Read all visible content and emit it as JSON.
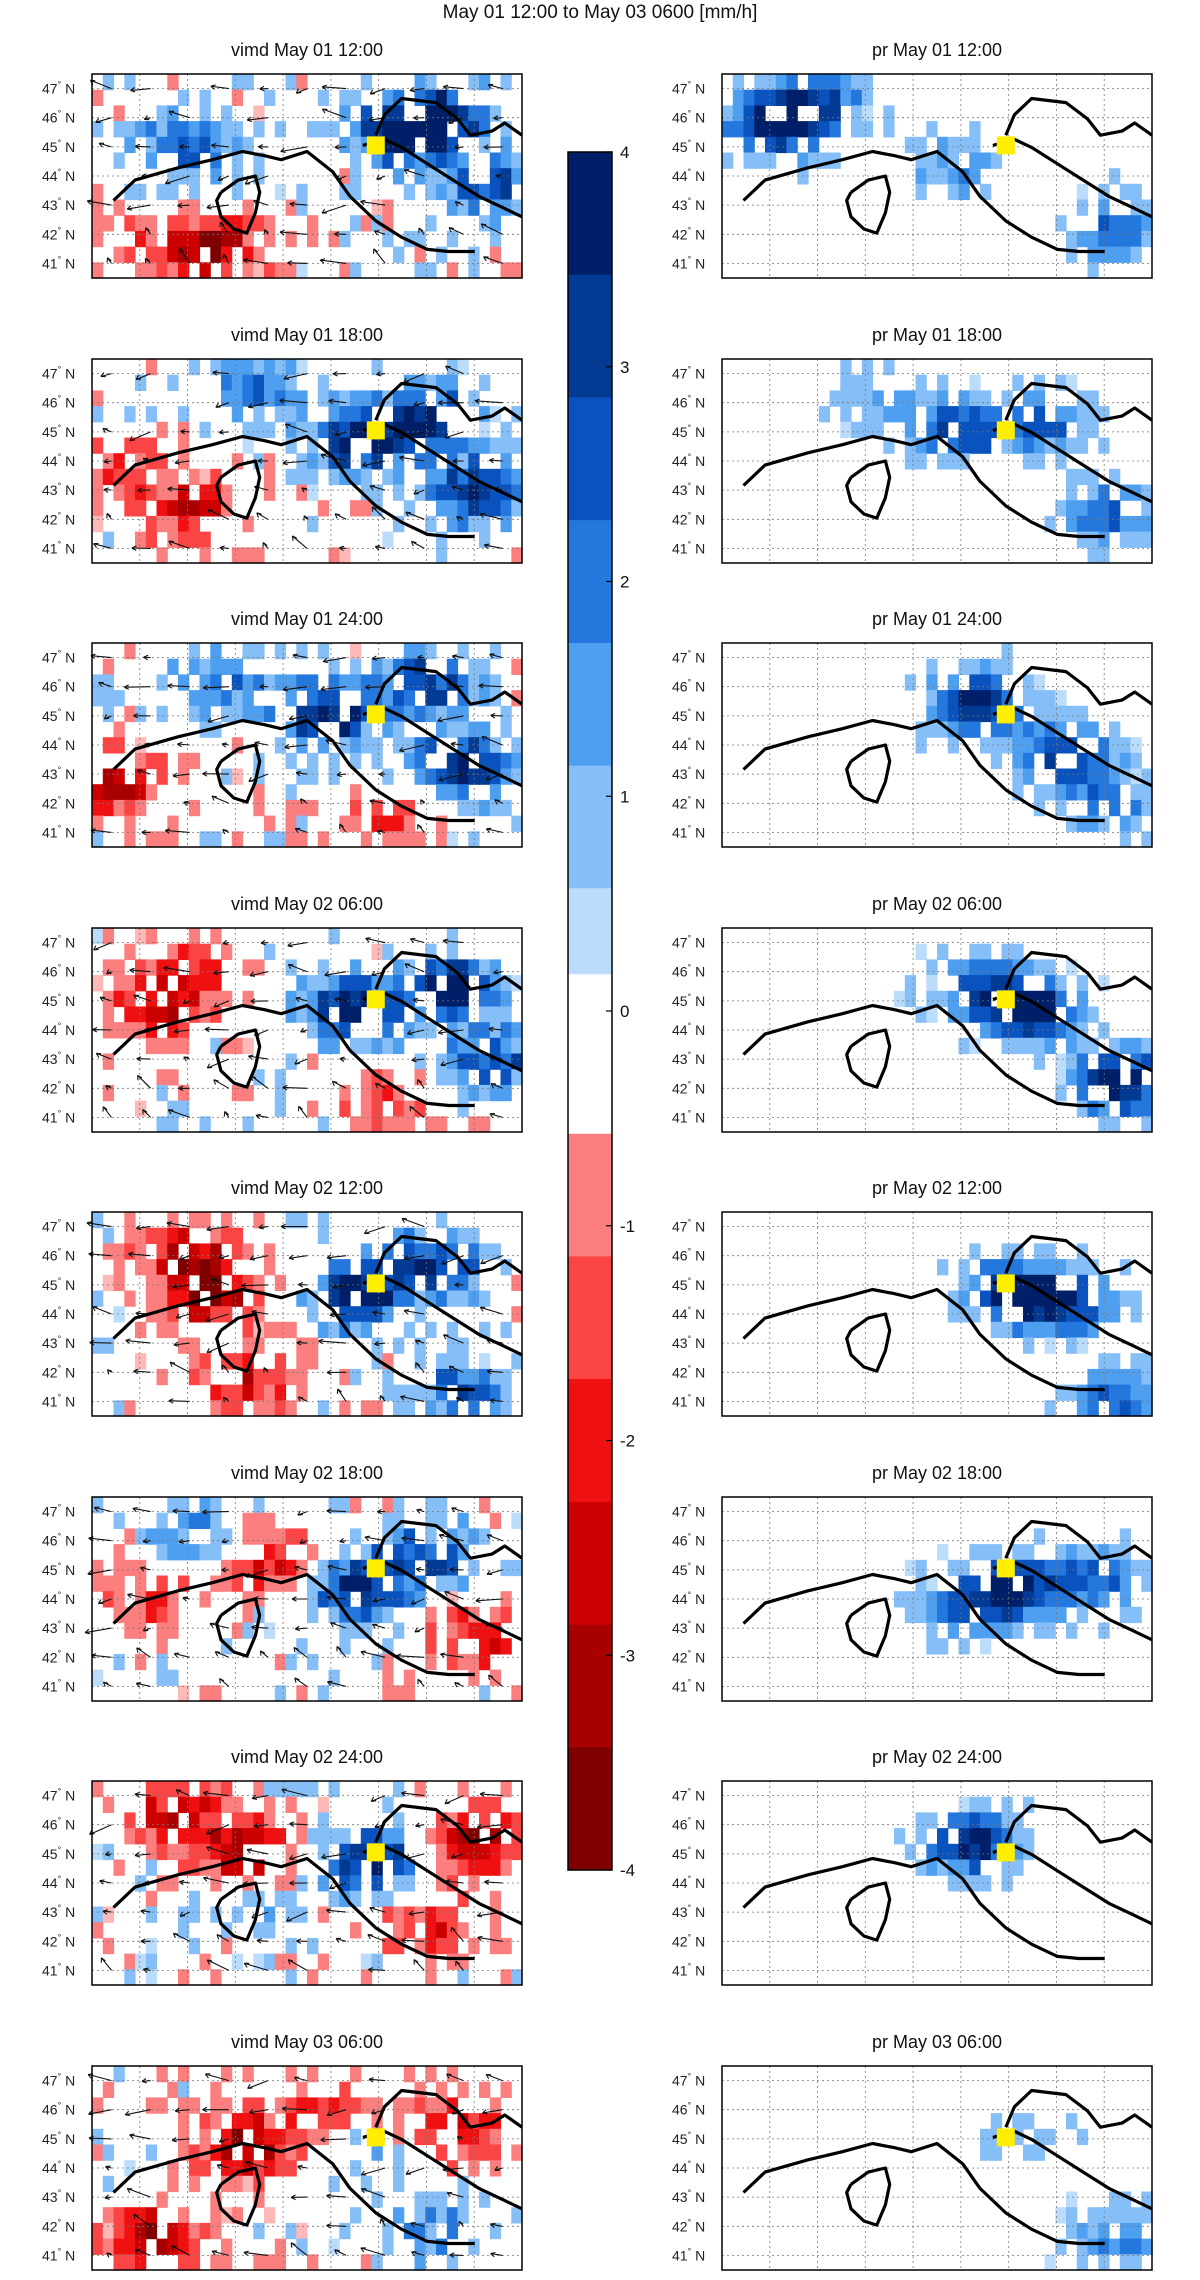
{
  "title": "May 01 12:00 to May 03 0600  [mm/h]",
  "lat_labels": [
    "47",
    "46",
    "45",
    "44",
    "43",
    "42",
    "41"
  ],
  "lat_suffix": "N",
  "colors": {
    "neg": [
      "#7f0000",
      "#a80000",
      "#cd0000",
      "#ef1111",
      "#fb4444",
      "#fc7f7f",
      "#fdb8b8"
    ],
    "pos": [
      "#bcdcfb",
      "#86bff7",
      "#4f9ff0",
      "#2377dd",
      "#0a52bd",
      "#023a94",
      "#001f69"
    ],
    "coast": "#000000",
    "marker": "#ffee00",
    "grid": "#777777"
  },
  "colorbar_ticks": [
    "4",
    "3",
    "2",
    "1",
    "0",
    "-1",
    "-2",
    "-3",
    "-4"
  ],
  "panels": [
    {
      "title": "vimd May 01 12:00",
      "var": "vimd",
      "hotspots": [
        [
          0.72,
          0.3,
          1.0
        ],
        [
          0.83,
          0.2,
          0.8
        ],
        [
          0.92,
          0.55,
          0.7
        ],
        [
          0.22,
          0.35,
          0.6
        ],
        [
          0.12,
          0.75,
          0.3
        ]
      ],
      "coldspots": [
        [
          0.27,
          0.85,
          0.9
        ],
        [
          0.08,
          0.8,
          0.5
        ]
      ]
    },
    {
      "title": "pr May 01 12:00",
      "var": "pr",
      "hotspots": [
        [
          0.12,
          0.25,
          0.9
        ],
        [
          0.22,
          0.15,
          0.7
        ],
        [
          0.55,
          0.45,
          0.4
        ],
        [
          0.92,
          0.75,
          0.6
        ]
      ],
      "coldspots": []
    },
    {
      "title": "vimd May 01 18:00",
      "var": "vimd",
      "hotspots": [
        [
          0.62,
          0.4,
          1.0
        ],
        [
          0.78,
          0.3,
          0.9
        ],
        [
          0.9,
          0.65,
          0.9
        ],
        [
          0.38,
          0.15,
          0.5
        ]
      ],
      "coldspots": [
        [
          0.25,
          0.75,
          0.6
        ],
        [
          0.1,
          0.55,
          0.4
        ]
      ]
    },
    {
      "title": "pr May 01 18:00",
      "var": "pr",
      "hotspots": [
        [
          0.55,
          0.35,
          0.7
        ],
        [
          0.75,
          0.3,
          0.6
        ],
        [
          0.9,
          0.75,
          0.6
        ],
        [
          0.35,
          0.2,
          0.3
        ]
      ],
      "coldspots": []
    },
    {
      "title": "vimd May 01 24:00",
      "var": "vimd",
      "hotspots": [
        [
          0.55,
          0.35,
          1.0
        ],
        [
          0.85,
          0.6,
          1.0
        ],
        [
          0.78,
          0.2,
          0.8
        ],
        [
          0.3,
          0.2,
          0.5
        ]
      ],
      "coldspots": [
        [
          0.05,
          0.7,
          0.7
        ],
        [
          0.7,
          0.85,
          0.4
        ]
      ]
    },
    {
      "title": "pr May 01 24:00",
      "var": "pr",
      "hotspots": [
        [
          0.6,
          0.3,
          0.9
        ],
        [
          0.8,
          0.55,
          0.8
        ],
        [
          0.9,
          0.8,
          0.5
        ]
      ],
      "coldspots": []
    },
    {
      "title": "vimd May 02 06:00",
      "var": "vimd",
      "hotspots": [
        [
          0.6,
          0.4,
          1.0
        ],
        [
          0.82,
          0.3,
          1.0
        ],
        [
          0.93,
          0.65,
          0.7
        ]
      ],
      "coldspots": [
        [
          0.15,
          0.4,
          0.6
        ],
        [
          0.25,
          0.2,
          0.5
        ],
        [
          0.7,
          0.9,
          0.4
        ]
      ]
    },
    {
      "title": "pr May 02 06:00",
      "var": "pr",
      "hotspots": [
        [
          0.72,
          0.4,
          1.0
        ],
        [
          0.93,
          0.75,
          1.0
        ],
        [
          0.6,
          0.3,
          0.6
        ]
      ],
      "coldspots": []
    },
    {
      "title": "vimd May 02 12:00",
      "var": "vimd",
      "hotspots": [
        [
          0.62,
          0.4,
          1.0
        ],
        [
          0.8,
          0.25,
          0.8
        ],
        [
          0.88,
          0.88,
          0.7
        ]
      ],
      "coldspots": [
        [
          0.28,
          0.4,
          0.8
        ],
        [
          0.22,
          0.2,
          0.6
        ],
        [
          0.35,
          0.85,
          0.6
        ]
      ]
    },
    {
      "title": "pr  May 02 12:00",
      "var": "pr",
      "hotspots": [
        [
          0.68,
          0.4,
          1.0
        ],
        [
          0.82,
          0.45,
          0.7
        ],
        [
          0.92,
          0.92,
          0.6
        ]
      ],
      "coldspots": []
    },
    {
      "title": "vimd May 02 18:00",
      "var": "vimd",
      "hotspots": [
        [
          0.62,
          0.45,
          0.9
        ],
        [
          0.78,
          0.3,
          0.7
        ],
        [
          0.25,
          0.2,
          0.4
        ]
      ],
      "coldspots": [
        [
          0.4,
          0.3,
          0.6
        ],
        [
          0.9,
          0.7,
          0.6
        ],
        [
          0.12,
          0.5,
          0.4
        ]
      ]
    },
    {
      "title": "pr  May 02 18:00",
      "var": "pr",
      "hotspots": [
        [
          0.68,
          0.45,
          0.9
        ],
        [
          0.88,
          0.4,
          0.6
        ],
        [
          0.55,
          0.55,
          0.5
        ]
      ],
      "coldspots": []
    },
    {
      "title": "vimd May 02 24:00",
      "var": "vimd",
      "hotspots": [
        [
          0.65,
          0.4,
          0.9
        ],
        [
          0.35,
          0.6,
          0.3
        ]
      ],
      "coldspots": [
        [
          0.35,
          0.35,
          0.8
        ],
        [
          0.9,
          0.3,
          0.8
        ],
        [
          0.2,
          0.15,
          0.6
        ],
        [
          0.78,
          0.7,
          0.5
        ]
      ]
    },
    {
      "title": "pr  May 02 24:00",
      "var": "pr",
      "hotspots": [
        [
          0.58,
          0.3,
          0.9
        ]
      ],
      "coldspots": []
    },
    {
      "title": "vimd May 03 06:00",
      "var": "vimd",
      "hotspots": [
        [
          0.6,
          0.35,
          0.4
        ],
        [
          0.8,
          0.8,
          0.4
        ]
      ],
      "coldspots": [
        [
          0.15,
          0.85,
          0.9
        ],
        [
          0.35,
          0.4,
          0.8
        ],
        [
          0.55,
          0.25,
          0.6
        ],
        [
          0.85,
          0.3,
          0.6
        ]
      ]
    },
    {
      "title": "pr  May 03 06:00",
      "var": "pr",
      "hotspots": [
        [
          0.93,
          0.85,
          0.5
        ],
        [
          0.7,
          0.35,
          0.2
        ]
      ],
      "coldspots": []
    }
  ]
}
